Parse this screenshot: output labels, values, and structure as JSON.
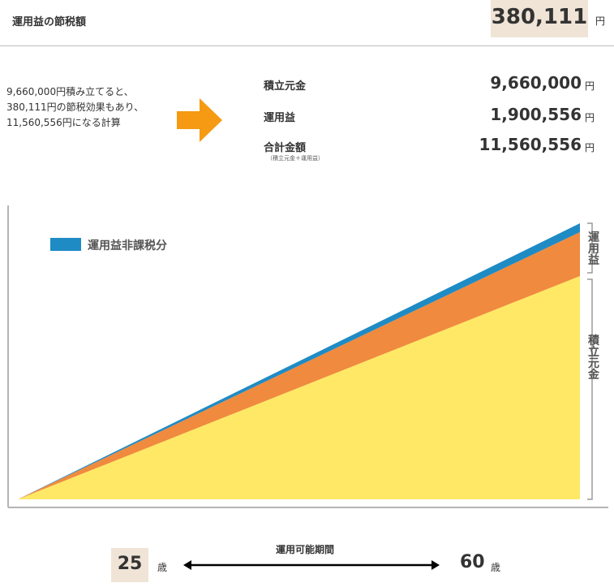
{
  "header": {
    "title": "運用益の節税額",
    "amount": "380,111",
    "unit": "円"
  },
  "summary": {
    "text": "9,660,000円積み立てると、380,111円の節税効果もあり、11,560,556円になる計算"
  },
  "breakdown": {
    "rows": [
      {
        "label": "積立元金",
        "value": "9,660,000",
        "unit": "円"
      },
      {
        "label": "運用益",
        "value": "1,900,556",
        "unit": "円"
      },
      {
        "label": "合計金額",
        "note": "（積立元金＋運用益）",
        "value": "11,560,556",
        "unit": "円"
      }
    ]
  },
  "colors": {
    "principal": "#ffe865",
    "gain": "#f08a3e",
    "tax_free": "#1f8bc4",
    "arrow": "#f59a12",
    "highlight_box": "#efe4d6"
  },
  "chart_data": {
    "type": "area",
    "x": [
      25,
      60
    ],
    "series": [
      {
        "name": "積立元金",
        "values": [
          0,
          9660000
        ]
      },
      {
        "name": "運用益",
        "values": [
          0,
          1900556
        ]
      },
      {
        "name": "運用益非課税分",
        "values": [
          0,
          380111
        ]
      }
    ],
    "stacked": true,
    "legend": "top-left",
    "legend_entries": [
      "運用益非課税分"
    ],
    "side_labels": [
      "運用益",
      "積立元金"
    ],
    "ylim": [
      0,
      11940667
    ],
    "grid": false
  },
  "axis": {
    "start_age": "25",
    "end_age": "60",
    "age_unit": "歳",
    "period_label": "運用可能期間"
  }
}
